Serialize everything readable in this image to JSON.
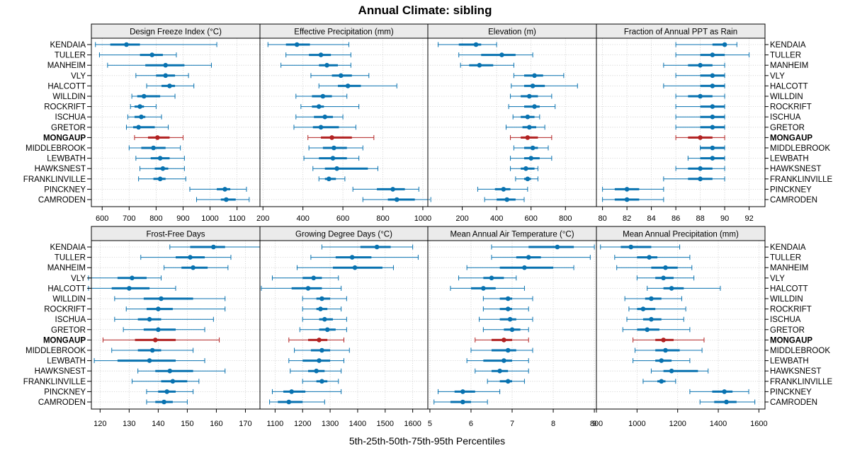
{
  "chart_data": {
    "type": "dot-interval",
    "title": "Annual Climate: sibling",
    "xlabel": "5th-25th-50th-75th-95th Percentiles",
    "highlight_site": "MONGAUP",
    "colors": {
      "normal": "#0872b0",
      "highlight": "#b22222"
    },
    "sites": [
      "KENDAIA",
      "TULLER",
      "MANHEIM",
      "VLY",
      "HALCOTT",
      "WILLDIN",
      "ROCKRIFT",
      "ISCHUA",
      "GRETOR",
      "MONGAUP",
      "MIDDLEBROOK",
      "LEWBATH",
      "HAWKSNEST",
      "FRANKLINVILLE",
      "PINCKNEY",
      "CAMRODEN"
    ],
    "shared_x_ticks": {
      "top": [
        [
          600,
          700,
          800,
          900,
          1000,
          1100
        ],
        [
          200,
          400,
          600,
          800,
          1000
        ],
        [
          200,
          400,
          600,
          800
        ],
        [
          80,
          82,
          84,
          86,
          88,
          90,
          92
        ]
      ],
      "bottom": [
        [
          120,
          130,
          140,
          150,
          160,
          170
        ],
        [
          1100,
          1200,
          1300,
          1400,
          1500,
          1600
        ],
        [
          5,
          6,
          7,
          8,
          9
        ],
        [
          800,
          1000,
          1200,
          1400,
          1600
        ]
      ]
    },
    "panels": [
      {
        "name": "Design Freeze Index (°C)",
        "xlim": [
          560,
          1185
        ],
        "ticks": [
          600,
          700,
          800,
          900,
          1000,
          1100
        ],
        "values": [
          [
            575,
            630,
            690,
            740,
            1025
          ],
          [
            590,
            740,
            785,
            825,
            875
          ],
          [
            620,
            760,
            835,
            905,
            1005
          ],
          [
            725,
            800,
            835,
            870,
            920
          ],
          [
            765,
            820,
            850,
            870,
            940
          ],
          [
            710,
            730,
            755,
            815,
            870
          ],
          [
            705,
            720,
            740,
            755,
            800
          ],
          [
            695,
            720,
            745,
            760,
            820
          ],
          [
            690,
            715,
            735,
            795,
            845
          ],
          [
            720,
            770,
            805,
            850,
            900
          ],
          [
            700,
            745,
            790,
            835,
            890
          ],
          [
            725,
            780,
            815,
            850,
            905
          ],
          [
            740,
            795,
            825,
            845,
            905
          ],
          [
            735,
            790,
            815,
            835,
            910
          ],
          [
            925,
            1025,
            1055,
            1075,
            1135
          ],
          [
            950,
            1040,
            1060,
            1095,
            1145
          ]
        ]
      },
      {
        "name": "Effective Precipitation (mm)",
        "xlim": [
          185,
          1025
        ],
        "ticks": [
          200,
          400,
          600,
          800,
          1000
        ],
        "values": [
          [
            225,
            315,
            370,
            435,
            630
          ],
          [
            315,
            430,
            490,
            540,
            640
          ],
          [
            290,
            480,
            520,
            575,
            640
          ],
          [
            440,
            545,
            590,
            645,
            730
          ],
          [
            480,
            575,
            625,
            690,
            870
          ],
          [
            365,
            445,
            500,
            545,
            620
          ],
          [
            390,
            445,
            480,
            505,
            680
          ],
          [
            365,
            455,
            510,
            550,
            600
          ],
          [
            355,
            450,
            490,
            580,
            665
          ],
          [
            425,
            490,
            545,
            645,
            755
          ],
          [
            430,
            500,
            555,
            620,
            700
          ],
          [
            405,
            480,
            550,
            620,
            680
          ],
          [
            450,
            510,
            570,
            725,
            775
          ],
          [
            480,
            510,
            530,
            565,
            610
          ],
          [
            650,
            770,
            850,
            910,
            980
          ],
          [
            700,
            825,
            870,
            960,
            1040
          ]
        ]
      },
      {
        "name": "Elevation (m)",
        "xlim": [
          0,
          980
        ],
        "ticks": [
          200,
          400,
          600,
          800
        ],
        "values": [
          [
            60,
            180,
            280,
            310,
            400
          ],
          [
            180,
            310,
            430,
            510,
            610
          ],
          [
            190,
            240,
            300,
            380,
            500
          ],
          [
            500,
            560,
            620,
            670,
            790
          ],
          [
            485,
            560,
            610,
            680,
            870
          ],
          [
            480,
            540,
            590,
            640,
            720
          ],
          [
            470,
            560,
            620,
            650,
            740
          ],
          [
            495,
            540,
            580,
            620,
            650
          ],
          [
            455,
            550,
            590,
            630,
            680
          ],
          [
            480,
            540,
            580,
            640,
            720
          ],
          [
            500,
            560,
            610,
            640,
            700
          ],
          [
            480,
            560,
            600,
            650,
            720
          ],
          [
            480,
            540,
            570,
            620,
            640
          ],
          [
            510,
            560,
            580,
            600,
            640
          ],
          [
            290,
            390,
            440,
            480,
            580
          ],
          [
            330,
            400,
            460,
            510,
            560
          ]
        ]
      },
      {
        "name": "Fraction of Annual PPT as Rain",
        "xlim": [
          79.5,
          93.3
        ],
        "ticks": [
          80,
          82,
          84,
          86,
          88,
          90,
          92
        ],
        "values": [
          [
            86,
            89,
            90,
            90,
            91
          ],
          [
            86,
            88,
            89,
            90,
            92
          ],
          [
            85,
            87,
            88,
            89,
            90
          ],
          [
            86,
            88,
            89,
            90,
            90
          ],
          [
            85,
            88,
            89,
            90,
            90
          ],
          [
            86,
            87,
            88,
            89,
            90
          ],
          [
            86,
            88,
            89,
            90,
            90
          ],
          [
            86,
            88,
            89,
            90,
            90
          ],
          [
            86,
            88,
            89,
            90,
            90
          ],
          [
            86,
            87,
            88,
            89,
            90
          ],
          [
            88,
            88,
            89,
            90,
            90
          ],
          [
            87,
            88,
            89,
            90,
            90
          ],
          [
            86,
            87,
            88,
            89,
            90
          ],
          [
            85,
            87,
            88,
            89,
            90
          ],
          [
            80,
            81,
            82,
            83,
            85
          ],
          [
            80,
            81,
            82,
            83,
            85
          ]
        ]
      },
      {
        "name": "Frost-Free Days",
        "xlim": [
          117,
          175
        ],
        "ticks": [
          120,
          130,
          140,
          150,
          160,
          170
        ],
        "values": [
          [
            144,
            151,
            159,
            163,
            175
          ],
          [
            134,
            146,
            151,
            156,
            165
          ],
          [
            142,
            148,
            152,
            157,
            164
          ],
          [
            116,
            126,
            131,
            136,
            141
          ],
          [
            116,
            124,
            130,
            137,
            146
          ],
          [
            125,
            135,
            141,
            152,
            163
          ],
          [
            129,
            136,
            140,
            145,
            163
          ],
          [
            125,
            133,
            137,
            141,
            159
          ],
          [
            128,
            135,
            140,
            146,
            156
          ],
          [
            121,
            132,
            139,
            146,
            161
          ],
          [
            124,
            133,
            138,
            141,
            152
          ],
          [
            118,
            126,
            137,
            146,
            156
          ],
          [
            133,
            139,
            144,
            152,
            163
          ],
          [
            131,
            141,
            145,
            150,
            154
          ],
          [
            136,
            140,
            143,
            146,
            152
          ],
          [
            136,
            139,
            142,
            145,
            150
          ]
        ]
      },
      {
        "name": "Growing Degree Days (°C)",
        "xlim": [
          1045,
          1655
        ],
        "ticks": [
          1100,
          1200,
          1300,
          1400,
          1500,
          1600
        ],
        "values": [
          [
            1270,
            1410,
            1470,
            1520,
            1600
          ],
          [
            1230,
            1320,
            1380,
            1450,
            1620
          ],
          [
            1180,
            1310,
            1390,
            1490,
            1530
          ],
          [
            1090,
            1200,
            1240,
            1270,
            1330
          ],
          [
            1050,
            1160,
            1220,
            1270,
            1340
          ],
          [
            1200,
            1250,
            1270,
            1300,
            1360
          ],
          [
            1200,
            1250,
            1265,
            1290,
            1340
          ],
          [
            1200,
            1260,
            1280,
            1310,
            1360
          ],
          [
            1190,
            1260,
            1290,
            1320,
            1360
          ],
          [
            1150,
            1220,
            1260,
            1290,
            1350
          ],
          [
            1170,
            1230,
            1270,
            1300,
            1370
          ],
          [
            1150,
            1200,
            1260,
            1300,
            1350
          ],
          [
            1155,
            1220,
            1250,
            1280,
            1340
          ],
          [
            1200,
            1250,
            1270,
            1290,
            1330
          ],
          [
            1090,
            1130,
            1160,
            1210,
            1340
          ],
          [
            1080,
            1110,
            1150,
            1200,
            1280
          ]
        ]
      },
      {
        "name": "Mean Annual Air Temperature (°C)",
        "xlim": [
          4.95,
          9.05
        ],
        "ticks": [
          5,
          6,
          7,
          8,
          9
        ],
        "values": [
          [
            6.5,
            7.4,
            8.1,
            8.5,
            9.0
          ],
          [
            6.5,
            7.1,
            7.4,
            7.7,
            8.9
          ],
          [
            5.9,
            6.7,
            7.3,
            8.0,
            8.5
          ],
          [
            5.7,
            6.3,
            6.5,
            6.8,
            7.1
          ],
          [
            5.5,
            6.0,
            6.3,
            6.6,
            7.3
          ],
          [
            6.3,
            6.7,
            6.9,
            7.0,
            7.5
          ],
          [
            6.3,
            6.7,
            6.9,
            7.0,
            7.4
          ],
          [
            6.2,
            6.7,
            6.95,
            7.1,
            7.5
          ],
          [
            6.3,
            6.8,
            7.0,
            7.2,
            7.4
          ],
          [
            6.1,
            6.5,
            6.8,
            7.0,
            7.4
          ],
          [
            6.0,
            6.5,
            6.9,
            7.1,
            7.5
          ],
          [
            5.9,
            6.3,
            6.8,
            7.0,
            7.4
          ],
          [
            6.1,
            6.5,
            6.7,
            6.9,
            7.4
          ],
          [
            6.4,
            6.7,
            6.9,
            7.0,
            7.3
          ],
          [
            5.2,
            5.6,
            5.8,
            6.1,
            6.7
          ],
          [
            5.1,
            5.5,
            5.8,
            6.0,
            6.4
          ]
        ]
      },
      {
        "name": "Mean Annual Precipitation (mm)",
        "xlim": [
          800,
          1630
        ],
        "ticks": [
          800,
          1000,
          1200,
          1400,
          1600
        ],
        "values": [
          [
            820,
            920,
            970,
            1070,
            1210
          ],
          [
            890,
            1000,
            1060,
            1100,
            1260
          ],
          [
            900,
            1070,
            1140,
            1200,
            1270
          ],
          [
            1000,
            1090,
            1130,
            1180,
            1280
          ],
          [
            1050,
            1130,
            1170,
            1230,
            1410
          ],
          [
            940,
            1040,
            1070,
            1120,
            1220
          ],
          [
            960,
            1000,
            1030,
            1090,
            1240
          ],
          [
            950,
            1030,
            1070,
            1120,
            1230
          ],
          [
            930,
            1000,
            1050,
            1110,
            1260
          ],
          [
            980,
            1090,
            1130,
            1180,
            1330
          ],
          [
            990,
            1090,
            1140,
            1210,
            1320
          ],
          [
            980,
            1090,
            1120,
            1170,
            1260
          ],
          [
            1070,
            1130,
            1170,
            1300,
            1350
          ],
          [
            1030,
            1100,
            1120,
            1140,
            1190
          ],
          [
            1260,
            1370,
            1430,
            1470,
            1550
          ],
          [
            1310,
            1380,
            1440,
            1490,
            1580
          ]
        ]
      }
    ]
  }
}
